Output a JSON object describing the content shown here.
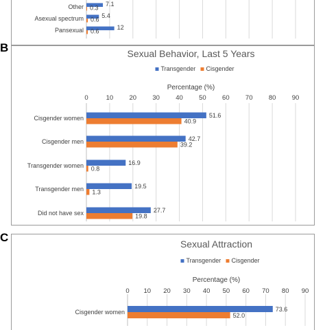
{
  "panels": {
    "b_letter": "B",
    "c_letter": "C"
  },
  "colors": {
    "transgender": "#4472C4",
    "cisgender": "#ED7D31",
    "grid": "#d9d9d9",
    "axis": "#bfbfbf"
  },
  "chart_data": [
    {
      "panel": "A",
      "type": "bar",
      "orientation": "horizontal",
      "title": "",
      "categories": [
        "Other",
        "Asexual spectrum",
        "Pansexual"
      ],
      "series": [
        {
          "name": "Transgender",
          "values": [
            7.1,
            5.4,
            12
          ]
        },
        {
          "name": "Cisgender",
          "values": [
            0.3,
            0.6,
            0.6
          ]
        }
      ],
      "xlim": [
        0,
        90
      ],
      "value_labels": {
        "Transgender": [
          "7.1",
          "5.4",
          "12"
        ],
        "Cisgender": [
          "0.3",
          "0.6",
          "0.6"
        ]
      }
    },
    {
      "panel": "B",
      "type": "bar",
      "orientation": "horizontal",
      "title": "Sexual Behavior, Last 5 Years",
      "xlabel": "Percentage (%)",
      "legend": [
        "Transgender",
        "Cisgender"
      ],
      "legend_position": "top",
      "categories": [
        "Cisgender women",
        "Cisgender men",
        "Transgender women",
        "Transgender men",
        "Did not have sex"
      ],
      "series": [
        {
          "name": "Transgender",
          "values": [
            51.6,
            42.7,
            16.9,
            19.5,
            27.7
          ]
        },
        {
          "name": "Cisgender",
          "values": [
            40.9,
            39.2,
            0.8,
            1.3,
            19.8
          ]
        }
      ],
      "value_labels": {
        "Transgender": [
          "51.6",
          "42.7",
          "16.9",
          "19.5",
          "27.7"
        ],
        "Cisgender": [
          "40.9",
          "39.2",
          "0.8",
          "1.3",
          "19.8"
        ]
      },
      "xlim": [
        0,
        90
      ],
      "xticks": [
        "0",
        "10",
        "20",
        "30",
        "40",
        "50",
        "60",
        "70",
        "80",
        "90"
      ],
      "grid": true
    },
    {
      "panel": "C",
      "type": "bar",
      "orientation": "horizontal",
      "title": "Sexual Attraction",
      "xlabel": "Percentage (%)",
      "legend": [
        "Transgender",
        "Cisgender"
      ],
      "legend_position": "top",
      "categories": [
        "Cisgender women"
      ],
      "series": [
        {
          "name": "Transgender",
          "values": [
            73.6
          ]
        },
        {
          "name": "Cisgender",
          "values": [
            52.0
          ]
        }
      ],
      "value_labels": {
        "Transgender": [
          "73.6"
        ],
        "Cisgender": [
          "52.0"
        ]
      },
      "xlim": [
        0,
        90
      ],
      "xticks": [
        "0",
        "10",
        "20",
        "30",
        "40",
        "50",
        "60",
        "70",
        "80",
        "90"
      ],
      "grid": true
    }
  ]
}
